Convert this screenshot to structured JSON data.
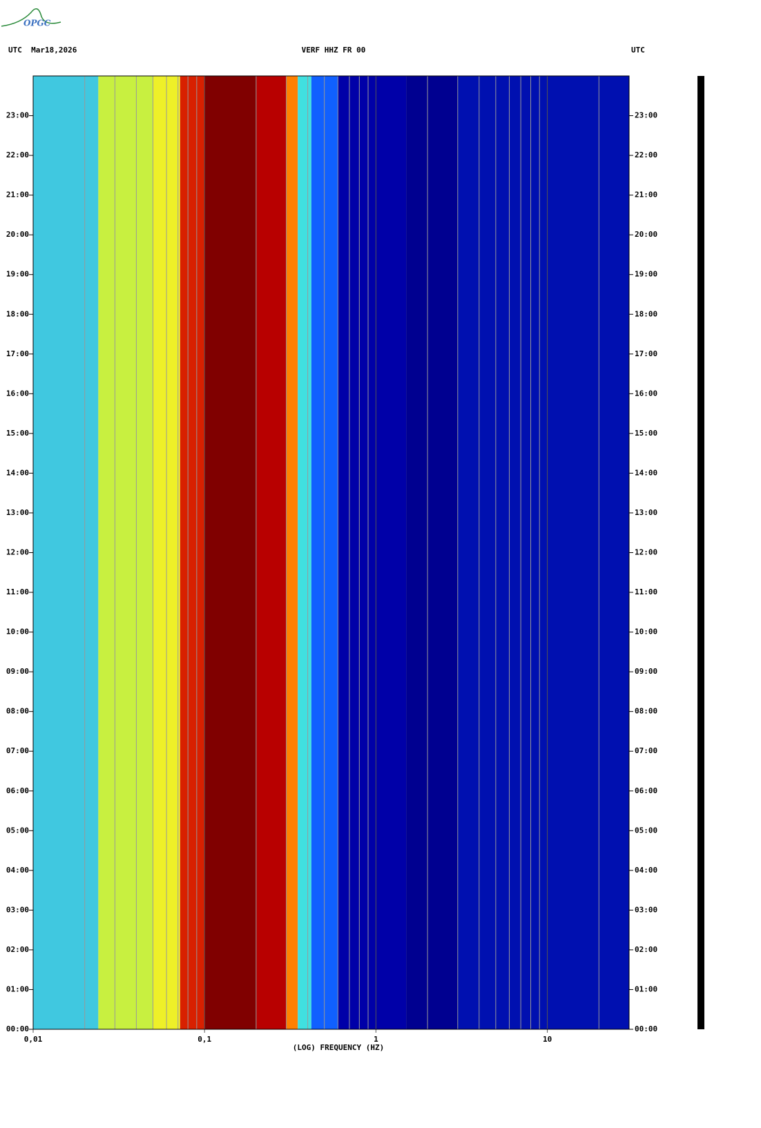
{
  "logo": "OPGC",
  "chart_data": {
    "type": "spectrogram",
    "header_left": "UTC  Mar18,2026",
    "title": "VERF HHZ FR 00",
    "header_right": "UTC",
    "xlabel": "(LOG) FREQUENCY (HZ)",
    "xscale": "log",
    "xlim": [
      0.01,
      30
    ],
    "xticks": [
      {
        "value": 0.01,
        "label": "0,01"
      },
      {
        "value": 0.1,
        "label": "0,1"
      },
      1,
      10
    ],
    "xgrid": [
      0.02,
      0.03,
      0.04,
      0.05,
      0.06,
      0.07,
      0.08,
      0.09,
      0.2,
      0.3,
      0.4,
      0.5,
      0.6,
      0.7,
      0.8,
      0.9,
      2,
      3,
      4,
      5,
      6,
      7,
      8,
      9,
      20
    ],
    "ylim": [
      0,
      24
    ],
    "yticks": [
      {
        "value": 0,
        "label": "00:00"
      },
      {
        "value": 1,
        "label": "01:00"
      },
      {
        "value": 2,
        "label": "02:00"
      },
      {
        "value": 3,
        "label": "03:00"
      },
      {
        "value": 4,
        "label": "04:00"
      },
      {
        "value": 5,
        "label": "05:00"
      },
      {
        "value": 6,
        "label": "06:00"
      },
      {
        "value": 7,
        "label": "07:00"
      },
      {
        "value": 8,
        "label": "08:00"
      },
      {
        "value": 9,
        "label": "09:00"
      },
      {
        "value": 10,
        "label": "10:00"
      },
      {
        "value": 11,
        "label": "11:00"
      },
      {
        "value": 12,
        "label": "12:00"
      },
      {
        "value": 13,
        "label": "13:00"
      },
      {
        "value": 14,
        "label": "14:00"
      },
      {
        "value": 15,
        "label": "15:00"
      },
      {
        "value": 16,
        "label": "16:00"
      },
      {
        "value": 17,
        "label": "17:00"
      },
      {
        "value": 18,
        "label": "18:00"
      },
      {
        "value": 19,
        "label": "19:00"
      },
      {
        "value": 20,
        "label": "20:00"
      },
      {
        "value": 21,
        "label": "21:00"
      },
      {
        "value": 22,
        "label": "22:00"
      },
      {
        "value": 23,
        "label": "23:00"
      }
    ],
    "bands": [
      {
        "from": 0.01,
        "to": 0.024,
        "color": "#40c8e0"
      },
      {
        "from": 0.024,
        "to": 0.05,
        "color": "#c8f040"
      },
      {
        "from": 0.05,
        "to": 0.072,
        "color": "#eef028"
      },
      {
        "from": 0.072,
        "to": 0.1,
        "color": "#d82000"
      },
      {
        "from": 0.1,
        "to": 0.2,
        "color": "#800000"
      },
      {
        "from": 0.2,
        "to": 0.3,
        "color": "#b80000"
      },
      {
        "from": 0.3,
        "to": 0.35,
        "color": "#ff8000"
      },
      {
        "from": 0.35,
        "to": 0.42,
        "color": "#40e0e0"
      },
      {
        "from": 0.42,
        "to": 0.6,
        "color": "#1060ff"
      },
      {
        "from": 0.6,
        "to": 1.5,
        "color": "#0000a8"
      },
      {
        "from": 1.5,
        "to": 3,
        "color": "#000090"
      },
      {
        "from": 3,
        "to": 30,
        "color": "#0010b0"
      }
    ]
  }
}
